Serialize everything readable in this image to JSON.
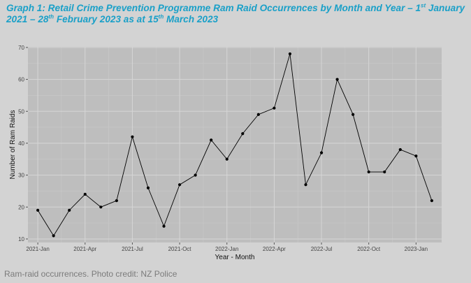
{
  "title": {
    "p1": "Graph 1: Retail Crime Prevention Programme Ram Raid Occurrences by Month and Year – 1",
    "p1_sup": "st",
    "p2": " January 2021 – 28",
    "p2_sup": "th",
    "p3": " February 2023 as at 15",
    "p3_sup": "th",
    "p4": " March 2023"
  },
  "caption": "Ram-raid occurrences. Photo credit: NZ Police",
  "chart_data": {
    "type": "line",
    "x": [
      "2021-01",
      "2021-02",
      "2021-03",
      "2021-04",
      "2021-05",
      "2021-06",
      "2021-07",
      "2021-08",
      "2021-09",
      "2021-10",
      "2021-11",
      "2021-12",
      "2022-01",
      "2022-02",
      "2022-03",
      "2022-04",
      "2022-05",
      "2022-06",
      "2022-07",
      "2022-08",
      "2022-09",
      "2022-10",
      "2022-11",
      "2022-12",
      "2023-01",
      "2023-02"
    ],
    "series": [
      {
        "values": [
          19,
          11,
          19,
          24,
          20,
          22,
          42,
          26,
          14,
          27,
          30,
          41,
          35,
          43,
          49,
          51,
          68,
          27,
          37,
          60,
          49,
          31,
          31,
          38,
          36,
          22
        ]
      }
    ],
    "x_ticks": [
      "2021-Jan",
      "2021-Apr",
      "2021-Jul",
      "2021-Oct",
      "2022-Jan",
      "2022-Apr",
      "2022-Jul",
      "2022-Oct",
      "2023-Jan"
    ],
    "y_ticks": [
      10,
      20,
      30,
      40,
      50,
      60,
      70
    ],
    "xlabel": "Year - Month",
    "ylabel": "Number of Ram Raids",
    "ylim": [
      8.9,
      70.2
    ],
    "grid": true,
    "line_color": "#000000",
    "panel_color": "#bebebe"
  }
}
